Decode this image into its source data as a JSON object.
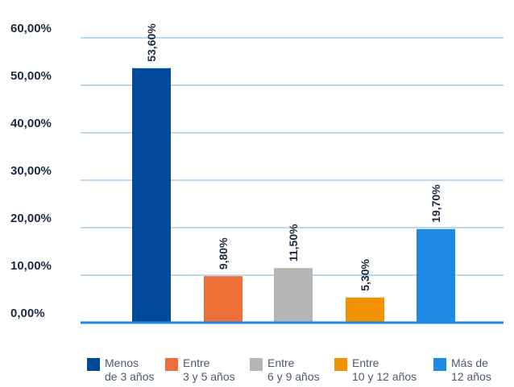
{
  "chart_data": {
    "type": "bar",
    "categories": [
      "Menos\nde 3 años",
      "Entre\n3 y 5 años",
      "Entre\n6 y 9 años",
      "Entre\n10 y 12 años",
      "Más de\n12 años"
    ],
    "values": [
      53.6,
      9.8,
      11.5,
      5.3,
      19.7
    ],
    "value_labels": [
      "53,60%",
      "9,80%",
      "11,50%",
      "5,30%",
      "19,70%"
    ],
    "colors": [
      "#00489a",
      "#ee6e38",
      "#b5b5b5",
      "#f39200",
      "#1e88e5"
    ],
    "y_ticks": [
      0,
      10,
      20,
      30,
      40,
      50,
      60
    ],
    "y_tick_labels": [
      "0,00%",
      "10,00%",
      "20,00%",
      "30,00%",
      "40,00%",
      "50,00%",
      "60,00%"
    ],
    "ylim": [
      0,
      60
    ],
    "grid": true,
    "gridline_color": "#7ab3e6",
    "axis_color": "#1e88e5",
    "legend_position": "bottom"
  }
}
